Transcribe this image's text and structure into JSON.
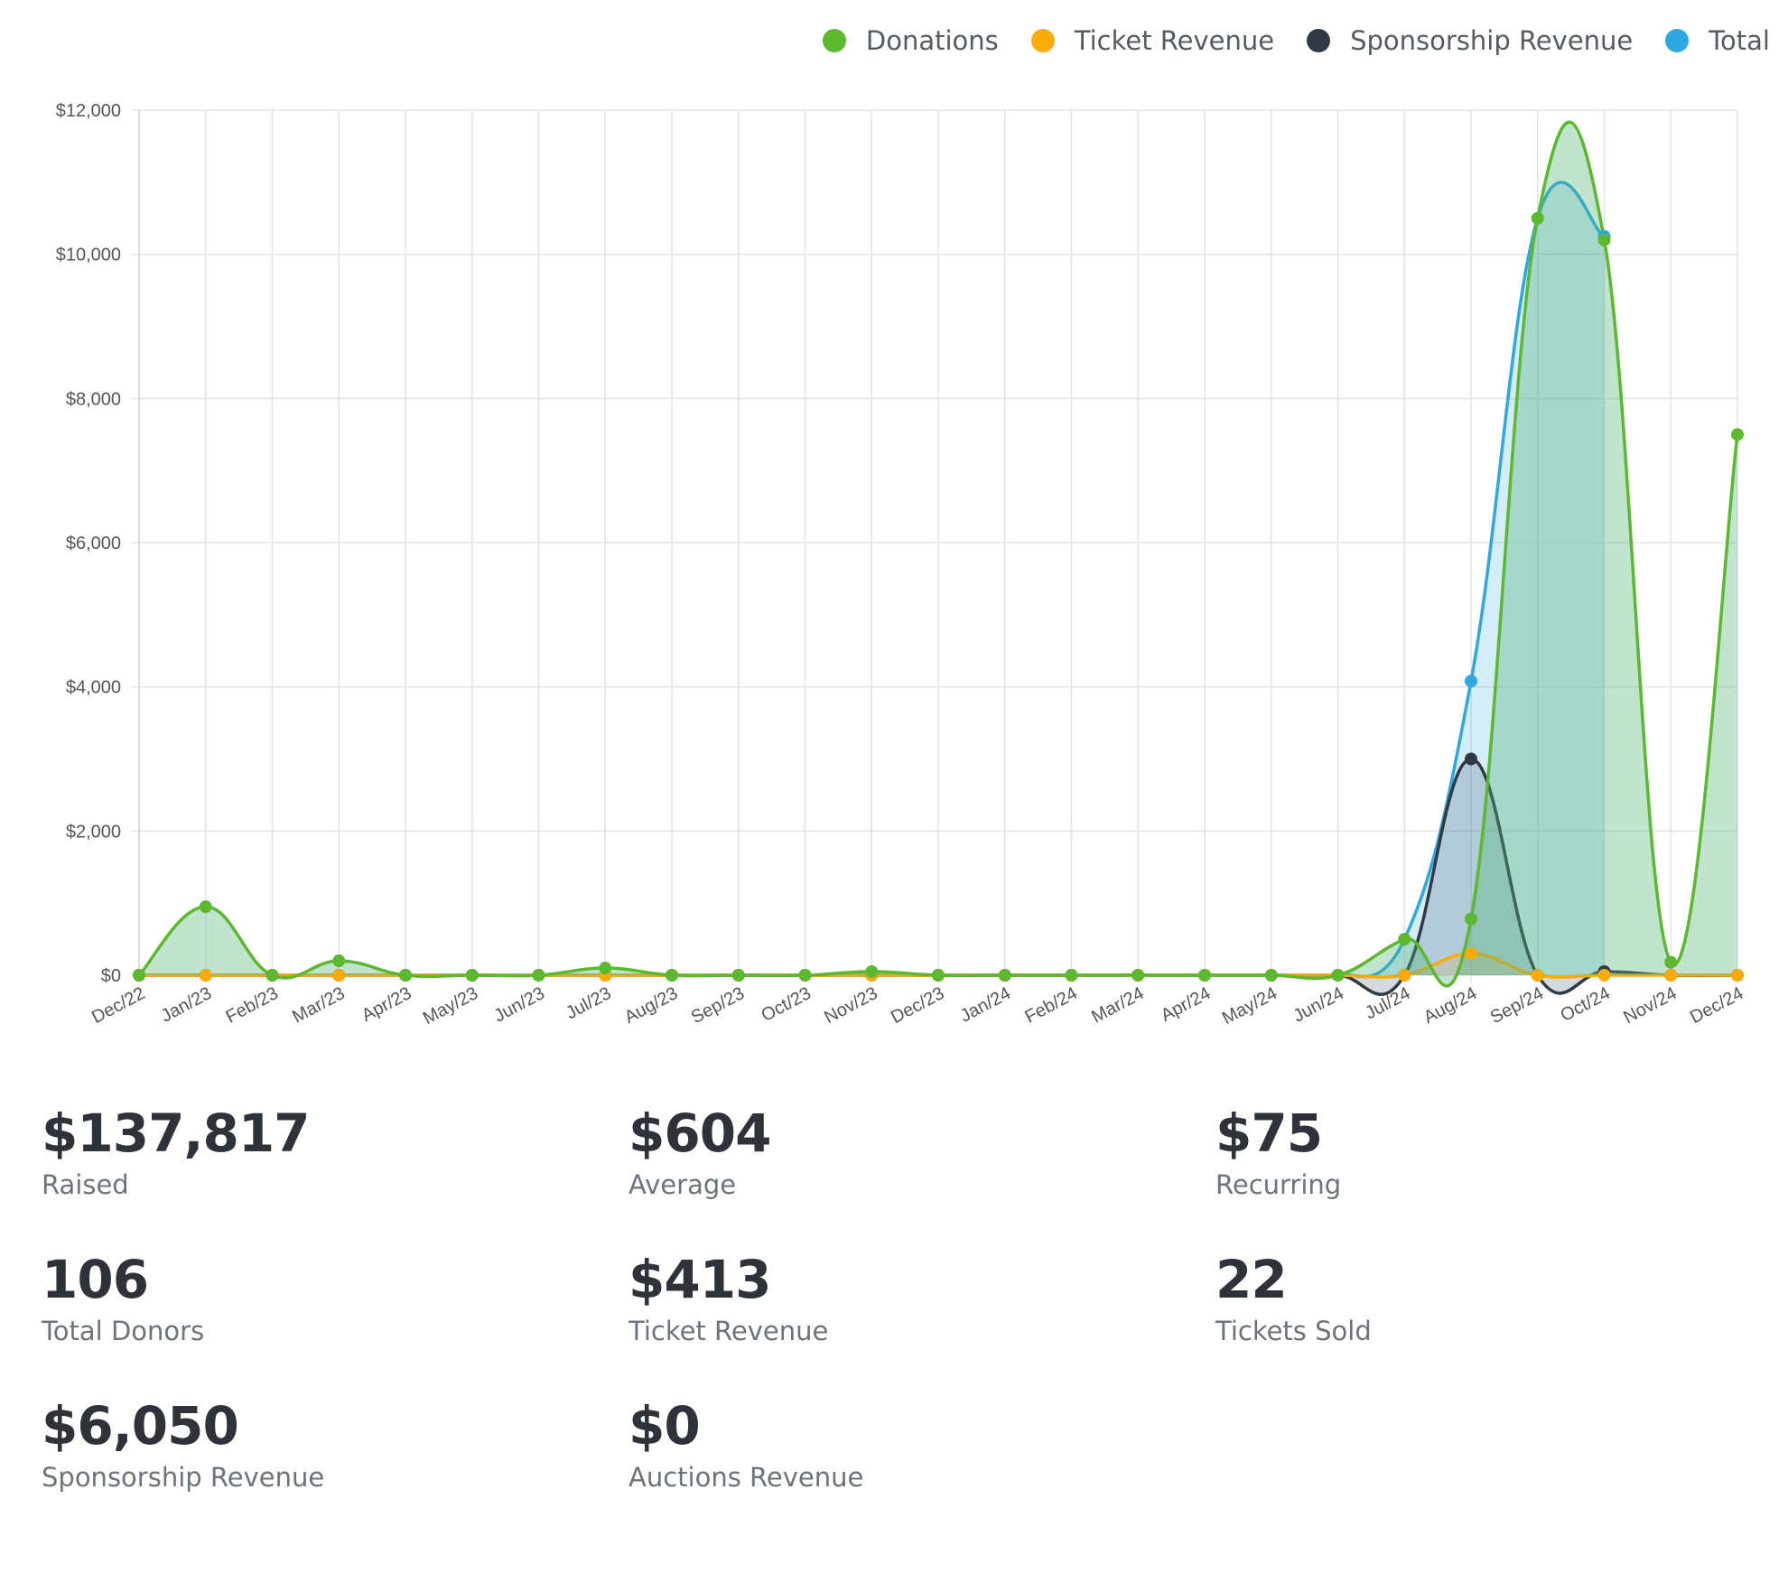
{
  "chart_data": {
    "type": "area",
    "categories": [
      "Dec/22",
      "Jan/23",
      "Feb/23",
      "Mar/23",
      "Apr/23",
      "May/23",
      "Jun/23",
      "Jul/23",
      "Aug/23",
      "Sep/23",
      "Oct/23",
      "Nov/23",
      "Dec/23",
      "Jan/24",
      "Feb/24",
      "Mar/24",
      "Apr/24",
      "May/24",
      "Jun/24",
      "Jul/24",
      "Aug/24",
      "Sep/24",
      "Oct/24",
      "Nov/24",
      "Dec/24"
    ],
    "ylim": [
      0,
      12000
    ],
    "yticks": [
      0,
      2000,
      4000,
      6000,
      8000,
      10000,
      12000
    ],
    "ytick_labels": [
      "$0",
      "$2,000",
      "$4,000",
      "$6,000",
      "$8,000",
      "$10,000",
      "$12,000"
    ],
    "grid": true,
    "legend_position": "top-right",
    "series": [
      {
        "name": "Donations",
        "color": "#5cb82e",
        "values": [
          0,
          950,
          0,
          200,
          0,
          0,
          0,
          100,
          0,
          0,
          0,
          50,
          0,
          0,
          0,
          0,
          0,
          0,
          0,
          500,
          780,
          10500,
          10200,
          180,
          7500
        ]
      },
      {
        "name": "Ticket Revenue",
        "color": "#f9ab0c",
        "values": [
          0,
          0,
          0,
          0,
          0,
          0,
          0,
          0,
          0,
          0,
          0,
          0,
          0,
          0,
          0,
          0,
          0,
          0,
          0,
          0,
          300,
          0,
          0,
          0,
          0
        ]
      },
      {
        "name": "Sponsorship Revenue",
        "color": "#2f3a44",
        "values": [
          0,
          0,
          0,
          0,
          0,
          0,
          0,
          0,
          0,
          0,
          0,
          0,
          0,
          0,
          0,
          0,
          0,
          0,
          0,
          0,
          3000,
          0,
          50,
          0,
          0
        ]
      },
      {
        "name": "Total",
        "color": "#2ea7e3",
        "values": [
          null,
          null,
          null,
          null,
          null,
          null,
          null,
          null,
          null,
          null,
          null,
          null,
          null,
          null,
          null,
          null,
          null,
          null,
          null,
          null,
          4080,
          10500,
          10250,
          null,
          null
        ]
      }
    ]
  },
  "stats": [
    {
      "value": "$137,817",
      "label": "Raised"
    },
    {
      "value": "$604",
      "label": "Average"
    },
    {
      "value": "$75",
      "label": "Recurring"
    },
    {
      "value": "106",
      "label": "Total Donors"
    },
    {
      "value": "$413",
      "label": "Ticket Revenue"
    },
    {
      "value": "22",
      "label": "Tickets Sold"
    },
    {
      "value": "$6,050",
      "label": "Sponsorship Revenue"
    },
    {
      "value": "$0",
      "label": "Auctions Revenue"
    }
  ]
}
